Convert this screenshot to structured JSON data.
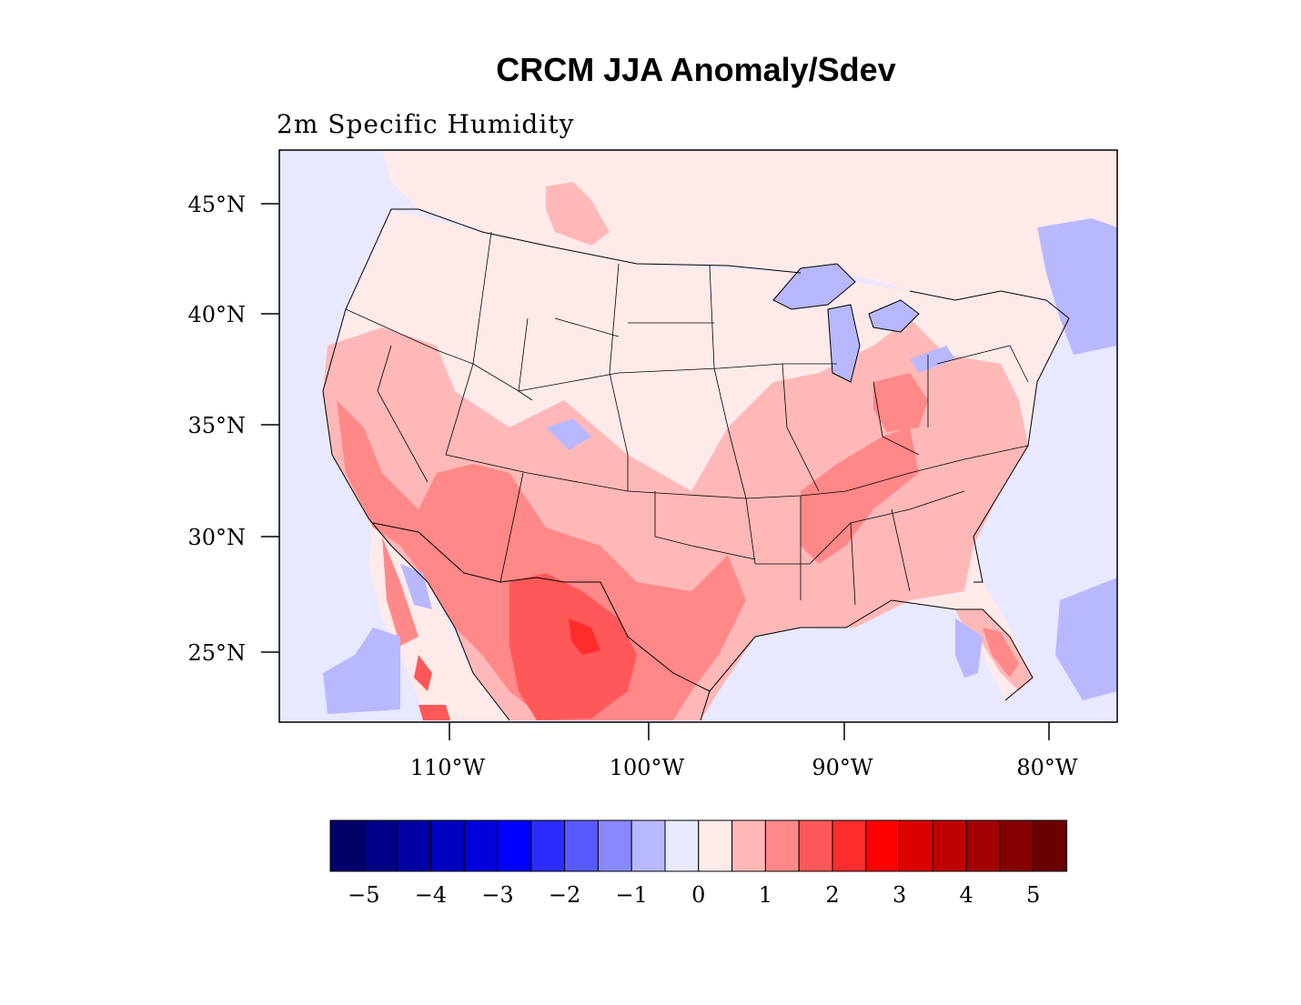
{
  "title": "CRCM JJA Anomaly/Sdev",
  "subtitle": "2m Specific Humidity",
  "map": {
    "lat_labels": [
      "45°N",
      "40°N",
      "35°N",
      "30°N",
      "25°N"
    ],
    "lon_labels": [
      "110°W",
      "100°W",
      "90°W",
      "80°W"
    ]
  },
  "colorbar": {
    "colors": [
      "#00006b",
      "#000086",
      "#0000a3",
      "#0000c0",
      "#0000dd",
      "#0000ff",
      "#2c2cff",
      "#5858ff",
      "#8888ff",
      "#b8b8ff",
      "#e8e8ff",
      "#ffeaea",
      "#ffb8b8",
      "#ff8888",
      "#ff5858",
      "#ff2c2c",
      "#ff0000",
      "#dd0000",
      "#c00000",
      "#a30000",
      "#860000",
      "#6b0000"
    ],
    "labels": [
      "−5",
      "−4",
      "−3",
      "−2",
      "−1",
      "0",
      "1",
      "2",
      "3",
      "4",
      "5"
    ]
  }
}
